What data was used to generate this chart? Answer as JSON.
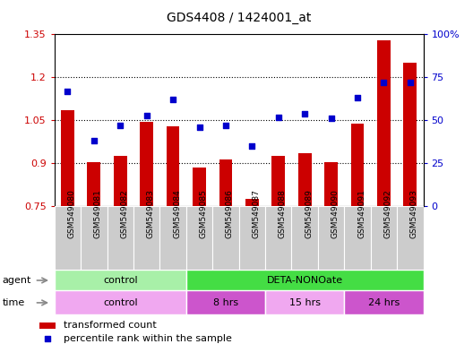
{
  "title": "GDS4408 / 1424001_at",
  "samples": [
    "GSM549080",
    "GSM549081",
    "GSM549082",
    "GSM549083",
    "GSM549084",
    "GSM549085",
    "GSM549086",
    "GSM549087",
    "GSM549088",
    "GSM549089",
    "GSM549090",
    "GSM549091",
    "GSM549092",
    "GSM549093"
  ],
  "transformed_count": [
    1.085,
    0.905,
    0.925,
    1.045,
    1.03,
    0.885,
    0.915,
    0.775,
    0.925,
    0.935,
    0.905,
    1.04,
    1.33,
    1.25
  ],
  "percentile_rank": [
    67,
    38,
    47,
    53,
    62,
    46,
    47,
    35,
    52,
    54,
    51,
    63,
    72,
    72
  ],
  "ylim_left": [
    0.75,
    1.35
  ],
  "ylim_right": [
    0,
    100
  ],
  "yticks_left": [
    0.75,
    0.9,
    1.05,
    1.2,
    1.35
  ],
  "yticks_right": [
    0,
    25,
    50,
    75,
    100
  ],
  "bar_color": "#cc0000",
  "dot_color": "#0000cc",
  "agent_groups": [
    {
      "label": "control",
      "start": 0,
      "end": 5,
      "color": "#a8f0a8"
    },
    {
      "label": "DETA-NONOate",
      "start": 5,
      "end": 14,
      "color": "#44dd44"
    }
  ],
  "time_groups": [
    {
      "label": "control",
      "start": 0,
      "end": 5,
      "color": "#f0a8f0"
    },
    {
      "label": "8 hrs",
      "start": 5,
      "end": 8,
      "color": "#cc55cc"
    },
    {
      "label": "15 hrs",
      "start": 8,
      "end": 11,
      "color": "#f0a8f0"
    },
    {
      "label": "24 hrs",
      "start": 11,
      "end": 14,
      "color": "#cc55cc"
    }
  ],
  "legend_bar_label": "transformed count",
  "legend_dot_label": "percentile rank within the sample",
  "tick_left_color": "#cc0000",
  "tick_right_color": "#0000cc",
  "xtick_bg_color": "#cccccc"
}
